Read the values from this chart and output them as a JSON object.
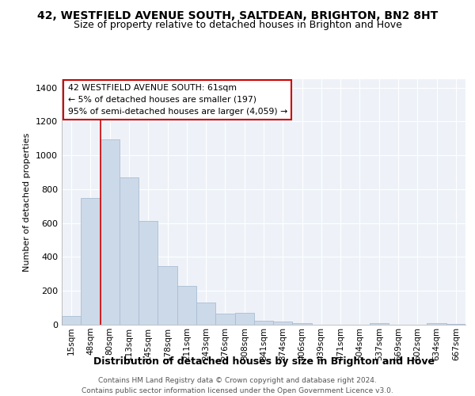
{
  "title1": "42, WESTFIELD AVENUE SOUTH, SALTDEAN, BRIGHTON, BN2 8HT",
  "title2": "Size of property relative to detached houses in Brighton and Hove",
  "xlabel": "Distribution of detached houses by size in Brighton and Hove",
  "ylabel": "Number of detached properties",
  "bar_labels": [
    "15sqm",
    "48sqm",
    "80sqm",
    "113sqm",
    "145sqm",
    "178sqm",
    "211sqm",
    "243sqm",
    "276sqm",
    "308sqm",
    "341sqm",
    "374sqm",
    "406sqm",
    "439sqm",
    "471sqm",
    "504sqm",
    "537sqm",
    "569sqm",
    "602sqm",
    "634sqm",
    "667sqm"
  ],
  "bar_values": [
    52,
    750,
    1095,
    870,
    615,
    348,
    228,
    130,
    65,
    68,
    25,
    18,
    10,
    0,
    0,
    0,
    8,
    0,
    0,
    10,
    5
  ],
  "bar_color": "#ccd9e8",
  "bar_edge_color": "#aabdd4",
  "vline_x": 1.5,
  "vline_color": "#cc0000",
  "annotation_lines": [
    "42 WESTFIELD AVENUE SOUTH: 61sqm",
    "← 5% of detached houses are smaller (197)",
    "95% of semi-detached houses are larger (4,059) →"
  ],
  "annotation_box_color": "#ffffff",
  "annotation_box_edge": "#cc0000",
  "ylim": [
    0,
    1450
  ],
  "yticks": [
    0,
    200,
    400,
    600,
    800,
    1000,
    1200,
    1400
  ],
  "footer1": "Contains HM Land Registry data © Crown copyright and database right 2024.",
  "footer2": "Contains public sector information licensed under the Open Government Licence v3.0.",
  "bg_color": "#ffffff",
  "plot_bg_color": "#eef2f8",
  "grid_color": "#ffffff",
  "title1_fontsize": 10,
  "title2_fontsize": 9,
  "xlabel_fontsize": 9,
  "ylabel_fontsize": 8,
  "tick_fontsize": 7.5,
  "footer_fontsize": 6.5
}
